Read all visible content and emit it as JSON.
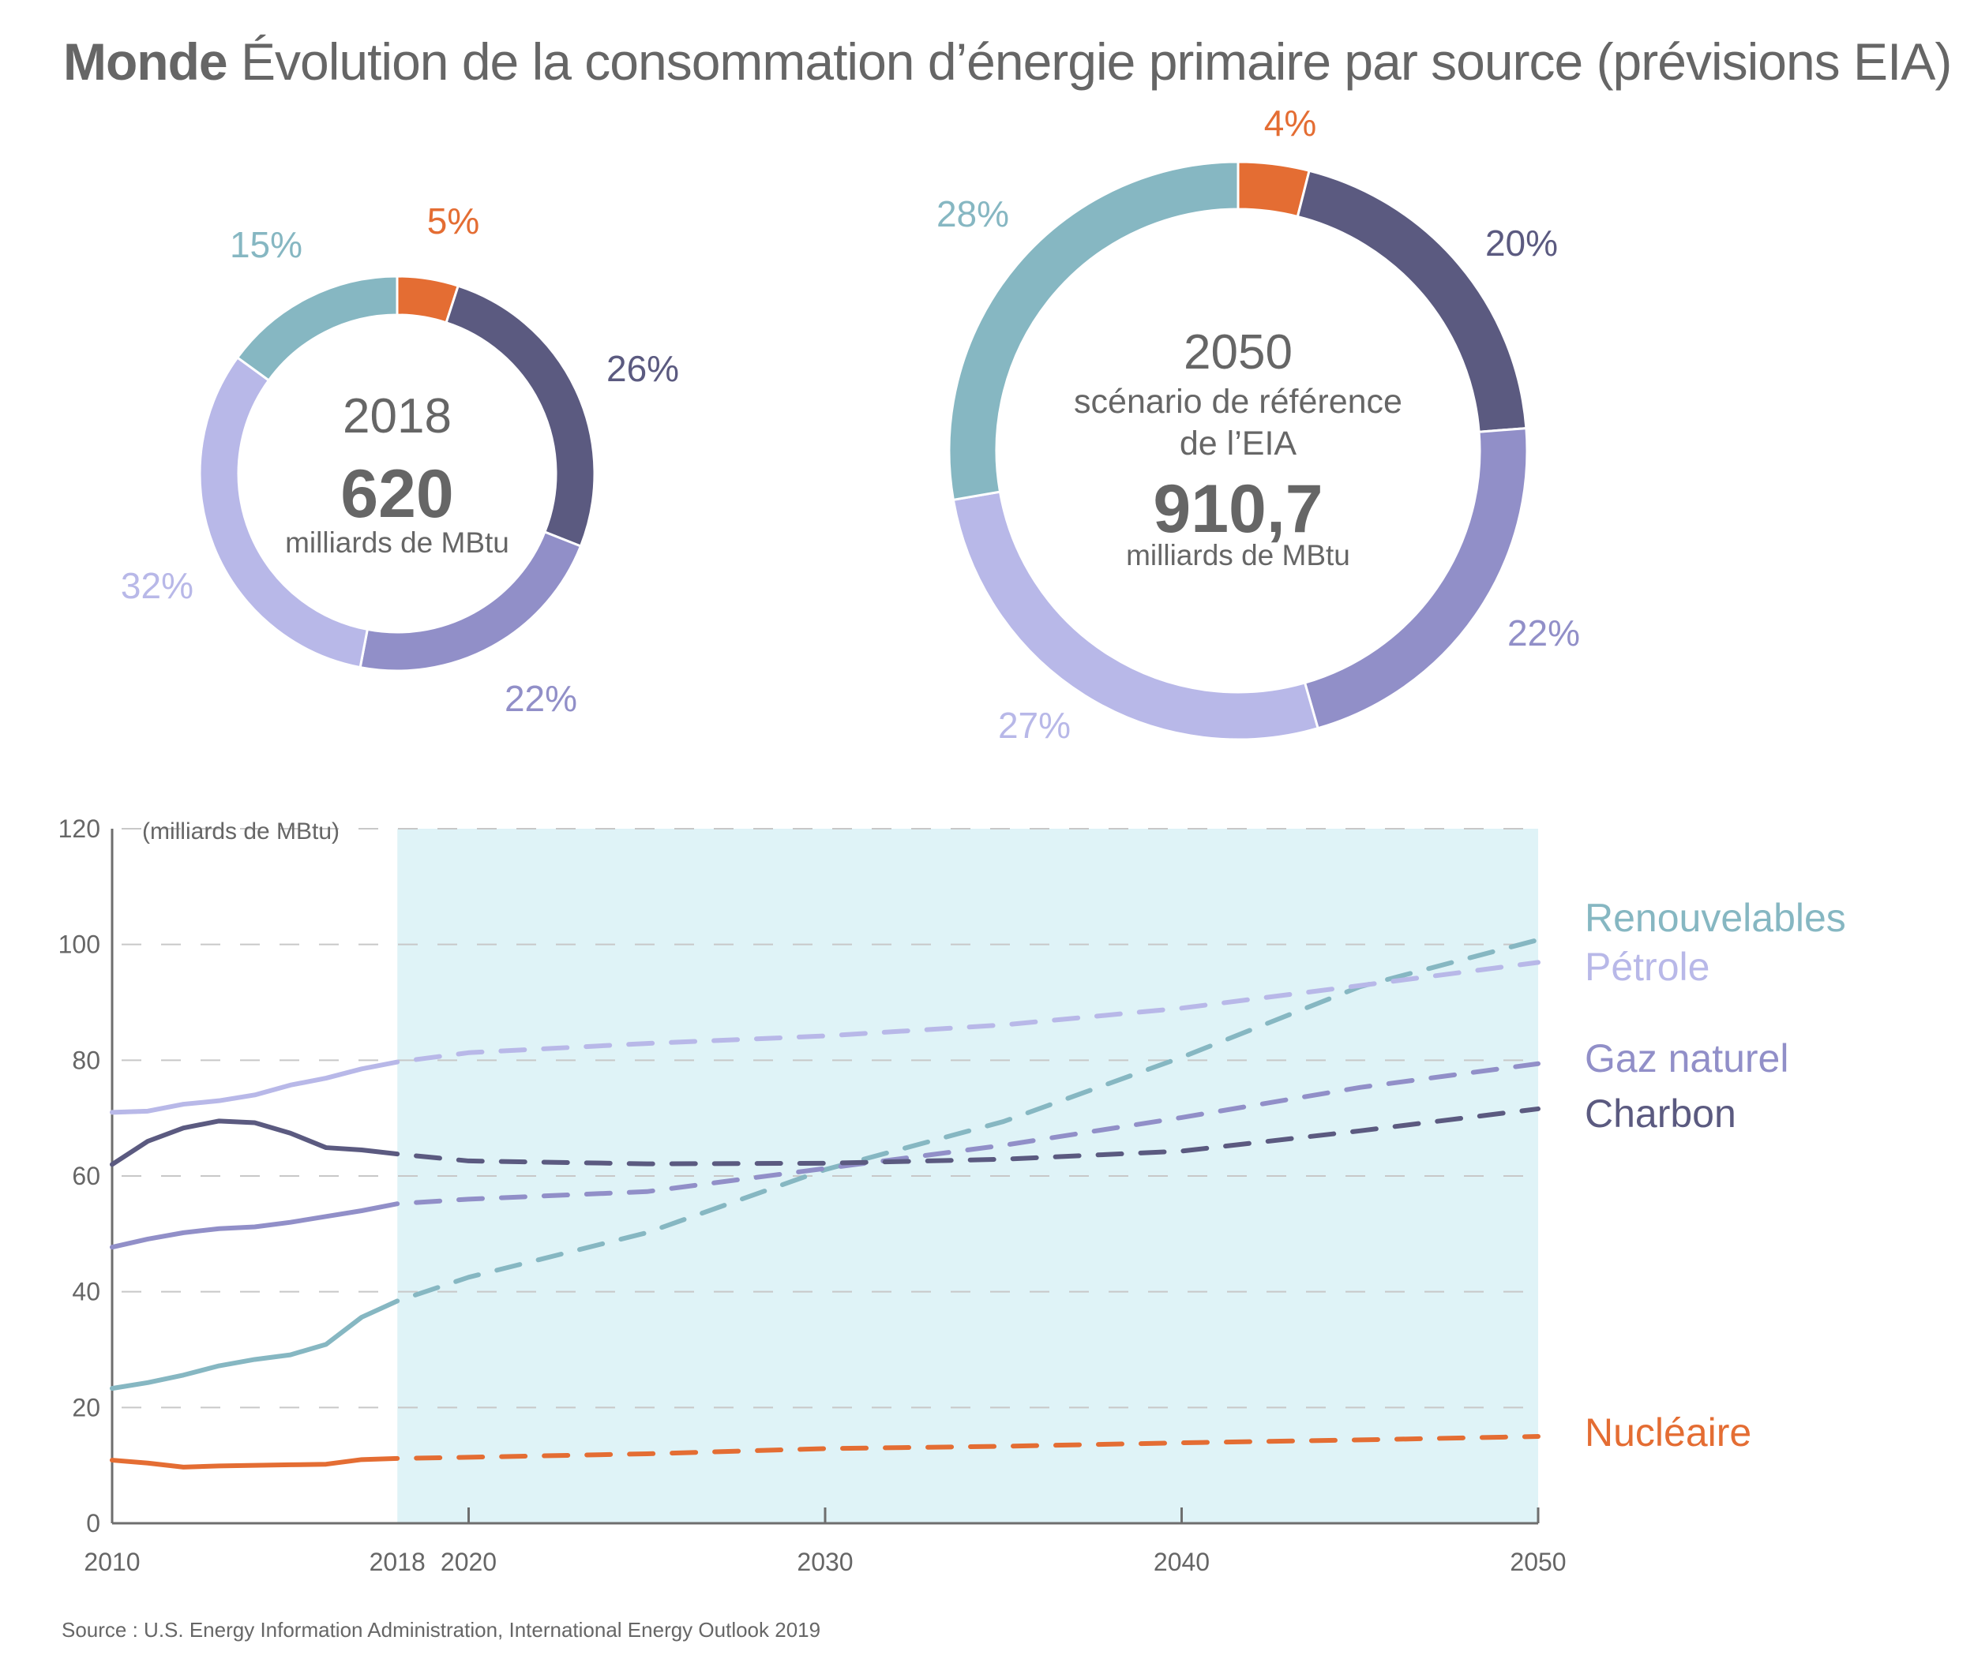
{
  "header": {
    "title_bold": "Monde",
    "title_rest": "Évolution de la consommation d’énergie primaire par source (prévisions EIA)"
  },
  "colors": {
    "nucleaire": "#e46d33",
    "charbon": "#5b5a80",
    "gaz": "#918fc8",
    "petrole": "#b8b8e8",
    "renouvelables": "#86b7c2",
    "forecast_shading": "#dff3f7",
    "text": "#666666",
    "grid": "#c8c8c8",
    "axis": "#6e6e6e"
  },
  "chart_data": [
    {
      "type": "pie",
      "variant": "donut",
      "year": "2018",
      "total": "620",
      "unit": "milliards de MBtu",
      "segments": [
        {
          "key": "nucleaire",
          "name": "Nucléaire",
          "value": 5,
          "label": "5%"
        },
        {
          "key": "charbon",
          "name": "Charbon",
          "value": 26,
          "label": "26%"
        },
        {
          "key": "gaz",
          "name": "Gaz naturel",
          "value": 22,
          "label": "22%"
        },
        {
          "key": "petrole",
          "name": "Pétrole",
          "value": 32,
          "label": "32%"
        },
        {
          "key": "renouvelables",
          "name": "Renouvelables",
          "value": 15,
          "label": "15%"
        }
      ]
    },
    {
      "type": "pie",
      "variant": "donut",
      "year": "2050",
      "subtitle_line1": "scénario de référence",
      "subtitle_line2": "de l’EIA",
      "total": "910,7",
      "unit": "milliards de MBtu",
      "segments": [
        {
          "key": "nucleaire",
          "name": "Nucléaire",
          "value": 4,
          "label": "4%"
        },
        {
          "key": "charbon",
          "name": "Charbon",
          "value": 20,
          "label": "20%"
        },
        {
          "key": "gaz",
          "name": "Gaz naturel",
          "value": 22,
          "label": "22%"
        },
        {
          "key": "petrole",
          "name": "Pétrole",
          "value": 27,
          "label": "27%"
        },
        {
          "key": "renouvelables",
          "name": "Renouvelables",
          "value": 28,
          "label": "28%"
        }
      ]
    },
    {
      "type": "line",
      "ylabel": "(milliards de MBtu)",
      "xlim": [
        2010,
        2050
      ],
      "ylim": [
        0,
        120
      ],
      "yticks": [
        0,
        20,
        40,
        60,
        80,
        100,
        120
      ],
      "xticks": [
        {
          "value": 2010,
          "label": "2010"
        },
        {
          "value": 2018,
          "label": "2018"
        },
        {
          "value": 2020,
          "label": "2020"
        },
        {
          "value": 2030,
          "label": "2030"
        },
        {
          "value": 2040,
          "label": "2040"
        },
        {
          "value": 2050,
          "label": "2050"
        }
      ],
      "grid": true,
      "forecast_start": 2018,
      "forecast_style": "dashed",
      "legend": "right (direct labels)",
      "series": [
        {
          "key": "renouvelables",
          "name": "Renouvelables",
          "historical": {
            "x": [
              2010,
              2011,
              2012,
              2013,
              2014,
              2015,
              2016,
              2017,
              2018
            ],
            "y": [
              23.3,
              24.3,
              25.6,
              27.2,
              28.3,
              29.1,
              30.9,
              35.6,
              38.4
            ]
          },
          "forecast": {
            "x": [
              2018,
              2020,
              2025,
              2030,
              2035,
              2040,
              2045,
              2050
            ],
            "y": [
              38.4,
              42.5,
              50.2,
              61.1,
              69.4,
              80.5,
              92.7,
              100.8
            ]
          }
        },
        {
          "key": "petrole",
          "name": "Pétrole",
          "historical": {
            "x": [
              2010,
              2011,
              2012,
              2013,
              2014,
              2015,
              2016,
              2017,
              2018
            ],
            "y": [
              71.0,
              71.2,
              72.4,
              73.0,
              74.0,
              75.7,
              76.9,
              78.5,
              79.7
            ]
          },
          "forecast": {
            "x": [
              2018,
              2020,
              2025,
              2030,
              2035,
              2040,
              2045,
              2050
            ],
            "y": [
              79.7,
              81.3,
              82.9,
              84.2,
              86.1,
              89.0,
              92.9,
              96.9
            ]
          }
        },
        {
          "key": "gaz",
          "name": "Gaz naturel",
          "historical": {
            "x": [
              2010,
              2011,
              2012,
              2013,
              2014,
              2015,
              2016,
              2017,
              2018
            ],
            "y": [
              47.7,
              49.1,
              50.2,
              50.9,
              51.2,
              52.0,
              53.0,
              54.0,
              55.2
            ]
          },
          "forecast": {
            "x": [
              2018,
              2020,
              2025,
              2030,
              2035,
              2040,
              2045,
              2050
            ],
            "y": [
              55.2,
              56.0,
              57.3,
              61.3,
              65.3,
              70.1,
              75.3,
              79.4
            ]
          }
        },
        {
          "key": "charbon",
          "name": "Charbon",
          "historical": {
            "x": [
              2010,
              2011,
              2012,
              2013,
              2014,
              2015,
              2016,
              2017,
              2018
            ],
            "y": [
              62.0,
              66.0,
              68.3,
              69.5,
              69.2,
              67.4,
              64.9,
              64.5,
              63.8
            ]
          },
          "forecast": {
            "x": [
              2018,
              2020,
              2025,
              2030,
              2035,
              2040,
              2045,
              2050
            ],
            "y": [
              63.8,
              62.6,
              62.1,
              62.2,
              62.9,
              64.3,
              67.8,
              71.6
            ]
          }
        },
        {
          "key": "nucleaire",
          "name": "Nucléaire",
          "historical": {
            "x": [
              2010,
              2011,
              2012,
              2013,
              2014,
              2015,
              2016,
              2017,
              2018
            ],
            "y": [
              10.9,
              10.4,
              9.7,
              9.9,
              10.0,
              10.1,
              10.2,
              11.0,
              11.2
            ]
          },
          "forecast": {
            "x": [
              2018,
              2020,
              2025,
              2030,
              2035,
              2040,
              2045,
              2050
            ],
            "y": [
              11.2,
              11.4,
              12.0,
              12.9,
              13.3,
              13.9,
              14.4,
              15.0
            ]
          }
        }
      ]
    }
  ],
  "footer": {
    "source": "Source : U.S. Energy Information Administration, International Energy Outlook 2019"
  }
}
